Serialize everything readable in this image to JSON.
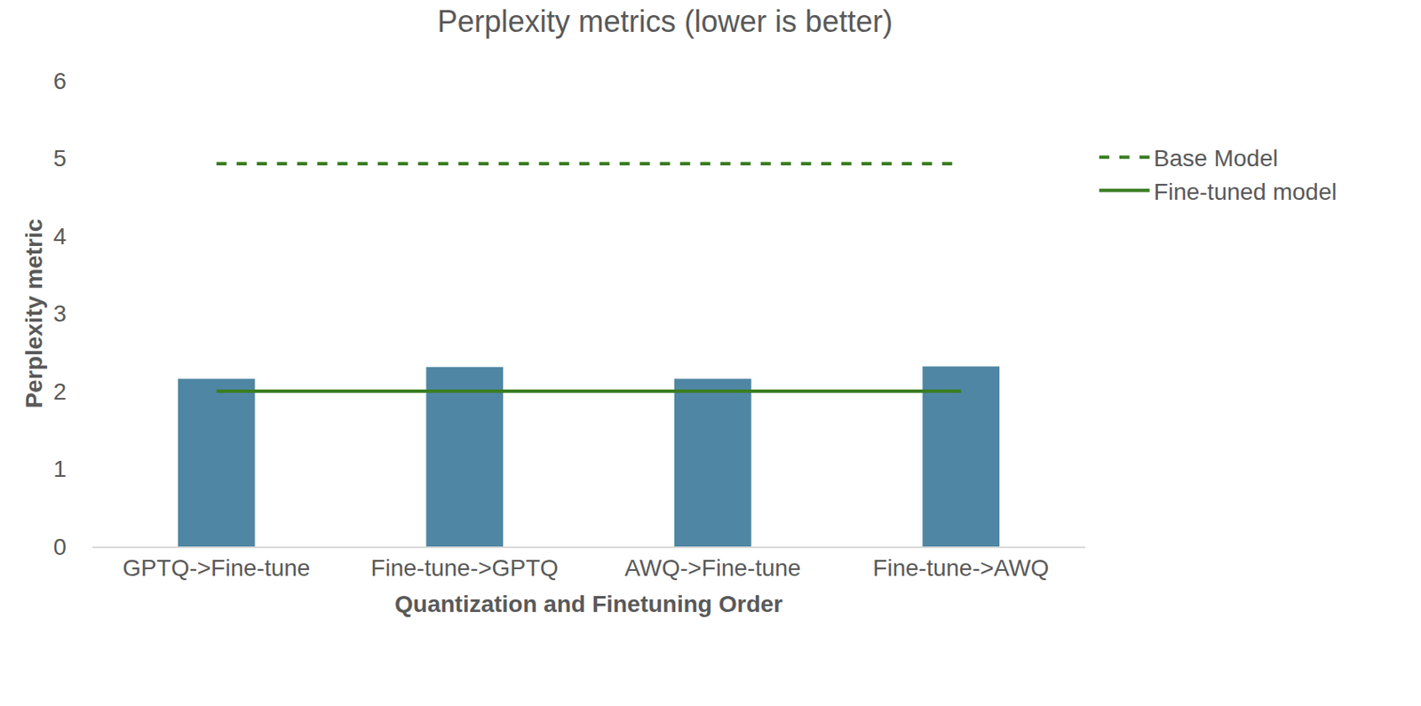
{
  "chart_data": {
    "type": "bar",
    "title": "Perplexity metrics (lower is better)",
    "x_label": "Quantization and Finetuning Order",
    "y_label": "Perplexity metric",
    "categories": [
      "GPTQ->Fine-tune",
      "Fine-tune->GPTQ",
      "AWQ->Fine-tune",
      "Fine-tune->AWQ"
    ],
    "series": [
      {
        "type": "bar",
        "color": "#4f86a3",
        "values": [
          2.16,
          2.31,
          2.16,
          2.32
        ]
      },
      {
        "name": "Base Model",
        "type": "line",
        "line_style": "dashed",
        "color": "#3a7d22",
        "values": [
          4.93,
          4.93,
          4.93,
          4.93
        ]
      },
      {
        "name": "Fine-tuned model",
        "type": "line",
        "line_style": "solid",
        "color": "#3a7d22",
        "values": [
          2.0,
          2.0,
          2.0,
          2.0
        ]
      }
    ],
    "ylim": [
      0,
      6
    ],
    "yticks": [
      0,
      1,
      2,
      3,
      4,
      5,
      6
    ],
    "grid": false,
    "legend": "right"
  }
}
